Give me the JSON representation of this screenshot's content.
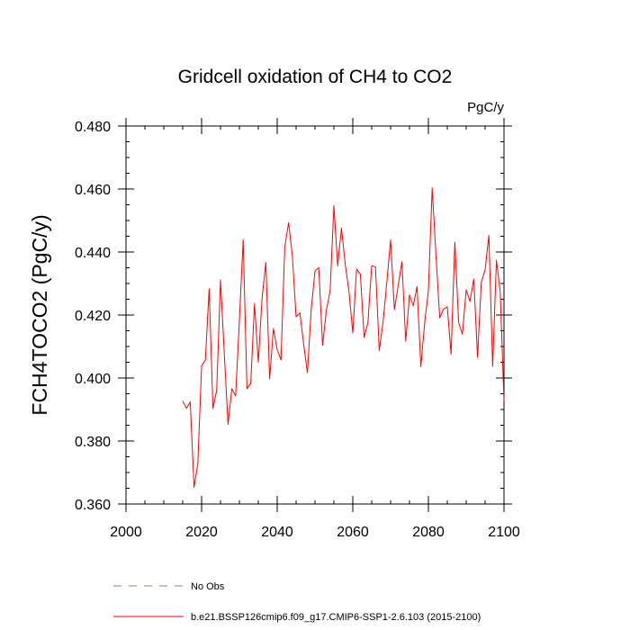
{
  "chart_data": {
    "type": "line",
    "title": "Gridcell oxidation of CH4 to CO2",
    "units": "PgC/y",
    "ylabel": "FCH4TOCO2  (PgC/y)",
    "xlabel": "",
    "xlim": [
      2000,
      2100
    ],
    "ylim": [
      0.36,
      0.48
    ],
    "x_ticks": [
      2000,
      2020,
      2040,
      2060,
      2080,
      2100
    ],
    "x_tick_labels": [
      "2000",
      "2020",
      "2040",
      "2060",
      "2080",
      "2100"
    ],
    "y_ticks": [
      0.36,
      0.38,
      0.4,
      0.42,
      0.44,
      0.46,
      0.48
    ],
    "y_tick_labels": [
      "0.360",
      "0.380",
      "0.400",
      "0.420",
      "0.440",
      "0.460",
      "0.480"
    ],
    "grid": false,
    "legend_position": "bottom-left",
    "legend": [
      {
        "label": "No Obs",
        "style": "dashed",
        "color": "#7b7bd9"
      },
      {
        "label": "b.e21.BSSP126cmip6.f09_g17.CMIP6-SSP1-2.6.103 (2015-2100)",
        "style": "solid",
        "color": "#ff0000"
      }
    ],
    "series": [
      {
        "name": "b.e21.BSSP126cmip6.f09_g17.CMIP6-SSP1-2.6.103 (2015-2100)",
        "color": "#ff0000",
        "x": [
          2015,
          2016,
          2017,
          2018,
          2019,
          2020,
          2021,
          2022,
          2023,
          2024,
          2025,
          2026,
          2027,
          2028,
          2029,
          2030,
          2031,
          2032,
          2033,
          2034,
          2035,
          2036,
          2037,
          2038,
          2039,
          2040,
          2041,
          2042,
          2043,
          2044,
          2045,
          2046,
          2047,
          2048,
          2049,
          2050,
          2051,
          2052,
          2053,
          2054,
          2055,
          2056,
          2057,
          2058,
          2059,
          2060,
          2061,
          2062,
          2063,
          2064,
          2065,
          2066,
          2067,
          2068,
          2069,
          2070,
          2071,
          2072,
          2073,
          2074,
          2075,
          2076,
          2077,
          2078,
          2079,
          2080,
          2081,
          2082,
          2083,
          2084,
          2085,
          2086,
          2087,
          2088,
          2089,
          2090,
          2091,
          2092,
          2093,
          2094,
          2095,
          2096,
          2097,
          2098,
          2099,
          2100
        ],
        "values": [
          0.3927,
          0.3904,
          0.3924,
          0.3653,
          0.3727,
          0.4038,
          0.4057,
          0.4283,
          0.3904,
          0.3961,
          0.4311,
          0.4079,
          0.3853,
          0.3966,
          0.3943,
          0.4183,
          0.4439,
          0.3966,
          0.3983,
          0.4236,
          0.405,
          0.4254,
          0.4367,
          0.3997,
          0.4157,
          0.409,
          0.4057,
          0.4414,
          0.4493,
          0.439,
          0.4194,
          0.4207,
          0.4107,
          0.4017,
          0.4219,
          0.434,
          0.435,
          0.4104,
          0.4214,
          0.4277,
          0.4547,
          0.4356,
          0.4476,
          0.4361,
          0.4273,
          0.4143,
          0.4346,
          0.433,
          0.4129,
          0.4176,
          0.4356,
          0.4353,
          0.4087,
          0.4177,
          0.4304,
          0.4439,
          0.4217,
          0.4293,
          0.4369,
          0.4117,
          0.4264,
          0.4229,
          0.429,
          0.4036,
          0.4173,
          0.4279,
          0.4603,
          0.439,
          0.4191,
          0.4219,
          0.4226,
          0.4076,
          0.4431,
          0.4176,
          0.4139,
          0.428,
          0.4243,
          0.4314,
          0.4067,
          0.4304,
          0.4343,
          0.4453,
          0.4037,
          0.4374,
          0.4273,
          0.3927
        ]
      }
    ]
  }
}
